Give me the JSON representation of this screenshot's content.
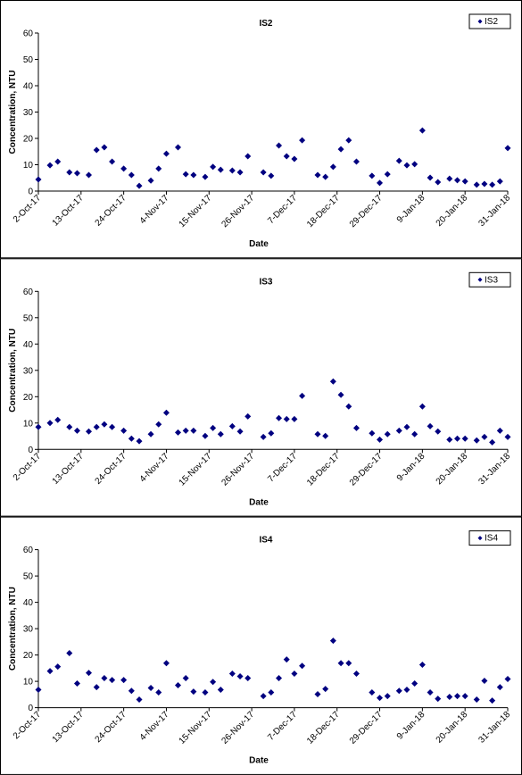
{
  "chart_data": [
    {
      "type": "scatter",
      "title": "IS2",
      "x_label": "Date",
      "y_label": "Concentration, NTU",
      "legend": "upper right",
      "grid": false,
      "x": [
        "2017-10-02",
        "2017-10-05",
        "2017-10-07",
        "2017-10-10",
        "2017-10-12",
        "2017-10-15",
        "2017-10-17",
        "2017-10-19",
        "2017-10-21",
        "2017-10-24",
        "2017-10-26",
        "2017-10-28",
        "2017-10-31",
        "2017-11-02",
        "2017-11-04",
        "2017-11-07",
        "2017-11-09",
        "2017-11-11",
        "2017-11-14",
        "2017-11-16",
        "2017-11-18",
        "2017-11-21",
        "2017-11-23",
        "2017-11-25",
        "2017-11-29",
        "2017-12-01",
        "2017-12-03",
        "2017-12-05",
        "2017-12-07",
        "2017-12-09",
        "2017-12-13",
        "2017-12-15",
        "2017-12-17",
        "2017-12-19",
        "2017-12-21",
        "2017-12-23",
        "2017-12-27",
        "2017-12-29",
        "2017-12-31",
        "2018-01-03",
        "2018-01-05",
        "2018-01-07",
        "2018-01-09",
        "2018-01-11",
        "2018-01-13",
        "2018-01-16",
        "2018-01-18",
        "2018-01-20",
        "2018-01-23",
        "2018-01-25",
        "2018-01-27",
        "2018-01-29",
        "2018-01-31"
      ],
      "series": [
        {
          "name": "IS2",
          "color": "#000080",
          "values": [
            4.4,
            9.8,
            11.2,
            7.1,
            6.8,
            6.1,
            15.6,
            16.6,
            11.2,
            8.5,
            6.1,
            2,
            4,
            8.5,
            14.2,
            16.6,
            6.4,
            6.1,
            5.4,
            9.2,
            8.1,
            7.8,
            7.1,
            13.2,
            7.1,
            5.8,
            17.3,
            13.2,
            12.2,
            19.3,
            6.1,
            5.4,
            9.2,
            15.9,
            19.3,
            11.2,
            5.8,
            3.1,
            6.4,
            11.5,
            9.8,
            10.2,
            23,
            5.1,
            3.4,
            4.7,
            4.1,
            3.7,
            2.4,
            2.7,
            2.4,
            3.7,
            16.3
          ]
        }
      ],
      "xlim": [
        "2017-10-02",
        "2018-01-31"
      ],
      "xticks": [
        {
          "value": "2017-10-02",
          "label": "2-Oct-17"
        },
        {
          "value": "2017-10-13",
          "label": "13-Oct-17"
        },
        {
          "value": "2017-10-24",
          "label": "24-Oct-17"
        },
        {
          "value": "2017-11-04",
          "label": "4-Nov-17"
        },
        {
          "value": "2017-11-15",
          "label": "15-Nov-17"
        },
        {
          "value": "2017-11-26",
          "label": "26-Nov-17"
        },
        {
          "value": "2017-12-07",
          "label": "7-Dec-17"
        },
        {
          "value": "2017-12-18",
          "label": "18-Dec-17"
        },
        {
          "value": "2017-12-29",
          "label": "29-Dec-17"
        },
        {
          "value": "2018-01-09",
          "label": "9-Jan-18"
        },
        {
          "value": "2018-01-20",
          "label": "20-Jan-18"
        },
        {
          "value": "2018-01-31",
          "label": "31-Jan-18"
        }
      ],
      "ylim": [
        0,
        60
      ],
      "yticks": [
        0,
        10,
        20,
        30,
        40,
        50,
        60
      ]
    },
    {
      "type": "scatter",
      "title": "IS3",
      "x_label": "Date",
      "y_label": "Concentration, NTU",
      "legend": "upper right",
      "grid": false,
      "x": [
        "2017-10-02",
        "2017-10-05",
        "2017-10-07",
        "2017-10-10",
        "2017-10-12",
        "2017-10-15",
        "2017-10-17",
        "2017-10-19",
        "2017-10-21",
        "2017-10-24",
        "2017-10-26",
        "2017-10-28",
        "2017-10-31",
        "2017-11-02",
        "2017-11-04",
        "2017-11-07",
        "2017-11-09",
        "2017-11-11",
        "2017-11-14",
        "2017-11-16",
        "2017-11-18",
        "2017-11-21",
        "2017-11-23",
        "2017-11-25",
        "2017-11-29",
        "2017-12-01",
        "2017-12-03",
        "2017-12-05",
        "2017-12-07",
        "2017-12-09",
        "2017-12-13",
        "2017-12-15",
        "2017-12-17",
        "2017-12-19",
        "2017-12-21",
        "2017-12-23",
        "2017-12-27",
        "2017-12-29",
        "2017-12-31",
        "2018-01-03",
        "2018-01-05",
        "2018-01-07",
        "2018-01-09",
        "2018-01-11",
        "2018-01-13",
        "2018-01-16",
        "2018-01-18",
        "2018-01-20",
        "2018-01-23",
        "2018-01-25",
        "2018-01-27",
        "2018-01-29",
        "2018-01-31"
      ],
      "series": [
        {
          "name": "IS3",
          "color": "#000080",
          "values": [
            8.5,
            10,
            11.2,
            8.5,
            7.1,
            6.8,
            8.5,
            9.5,
            8.5,
            7.1,
            4.1,
            3.1,
            5.8,
            9.5,
            13.9,
            6.4,
            7.1,
            7.1,
            5.1,
            8.1,
            5.8,
            8.8,
            6.8,
            12.5,
            4.7,
            6.1,
            11.9,
            11.5,
            11.5,
            20.3,
            5.8,
            5.1,
            25.8,
            20.7,
            16.3,
            8.1,
            6.1,
            3.7,
            5.8,
            7.1,
            8.5,
            5.8,
            16.3,
            8.8,
            6.8,
            3.7,
            4.1,
            4.1,
            3.4,
            4.7,
            2.7,
            7.1,
            4.7
          ]
        }
      ],
      "xlim": [
        "2017-10-02",
        "2018-01-31"
      ],
      "xticks": [
        {
          "value": "2017-10-02",
          "label": "2-Oct-17"
        },
        {
          "value": "2017-10-13",
          "label": "13-Oct-17"
        },
        {
          "value": "2017-10-24",
          "label": "24-Oct-17"
        },
        {
          "value": "2017-11-04",
          "label": "4-Nov-17"
        },
        {
          "value": "2017-11-15",
          "label": "15-Nov-17"
        },
        {
          "value": "2017-11-26",
          "label": "26-Nov-17"
        },
        {
          "value": "2017-12-07",
          "label": "7-Dec-17"
        },
        {
          "value": "2017-12-18",
          "label": "18-Dec-17"
        },
        {
          "value": "2017-12-29",
          "label": "29-Dec-17"
        },
        {
          "value": "2018-01-09",
          "label": "9-Jan-18"
        },
        {
          "value": "2018-01-20",
          "label": "20-Jan-18"
        },
        {
          "value": "2018-01-31",
          "label": "31-Jan-18"
        }
      ],
      "ylim": [
        0,
        60
      ],
      "yticks": [
        0,
        10,
        20,
        30,
        40,
        50,
        60
      ]
    },
    {
      "type": "scatter",
      "title": "IS4",
      "x_label": "Date",
      "y_label": "Concentration, NTU",
      "legend": "upper right",
      "grid": false,
      "x": [
        "2017-10-02",
        "2017-10-05",
        "2017-10-07",
        "2017-10-10",
        "2017-10-12",
        "2017-10-15",
        "2017-10-17",
        "2017-10-19",
        "2017-10-21",
        "2017-10-24",
        "2017-10-26",
        "2017-10-28",
        "2017-10-31",
        "2017-11-02",
        "2017-11-04",
        "2017-11-07",
        "2017-11-09",
        "2017-11-11",
        "2017-11-14",
        "2017-11-16",
        "2017-11-18",
        "2017-11-21",
        "2017-11-23",
        "2017-11-25",
        "2017-11-29",
        "2017-12-01",
        "2017-12-03",
        "2017-12-05",
        "2017-12-07",
        "2017-12-09",
        "2017-12-13",
        "2017-12-15",
        "2017-12-17",
        "2017-12-19",
        "2017-12-21",
        "2017-12-23",
        "2017-12-27",
        "2017-12-29",
        "2017-12-31",
        "2018-01-03",
        "2018-01-05",
        "2018-01-07",
        "2018-01-09",
        "2018-01-11",
        "2018-01-13",
        "2018-01-16",
        "2018-01-18",
        "2018-01-20",
        "2018-01-23",
        "2018-01-25",
        "2018-01-27",
        "2018-01-29",
        "2018-01-31"
      ],
      "series": [
        {
          "name": "IS4",
          "color": "#000080",
          "values": [
            6.8,
            13.9,
            15.6,
            20.7,
            9.2,
            13.2,
            7.8,
            11.2,
            10.5,
            10.5,
            6.4,
            3.1,
            7.5,
            5.8,
            16.9,
            8.5,
            11.2,
            6.1,
            5.8,
            9.8,
            6.8,
            12.9,
            11.9,
            11.2,
            4.4,
            5.8,
            11.2,
            18.3,
            12.9,
            15.9,
            5.1,
            7.1,
            25.4,
            16.9,
            16.9,
            12.9,
            5.8,
            3.7,
            4.4,
            6.4,
            6.8,
            9.2,
            16.3,
            5.8,
            3.4,
            4.1,
            4.4,
            4.4,
            3.1,
            10.2,
            2.7,
            7.8,
            10.9
          ]
        }
      ],
      "xlim": [
        "2017-10-02",
        "2018-01-31"
      ],
      "xticks": [
        {
          "value": "2017-10-02",
          "label": "2-Oct-17"
        },
        {
          "value": "2017-10-13",
          "label": "13-Oct-17"
        },
        {
          "value": "2017-10-24",
          "label": "24-Oct-17"
        },
        {
          "value": "2017-11-04",
          "label": "4-Nov-17"
        },
        {
          "value": "2017-11-15",
          "label": "15-Nov-17"
        },
        {
          "value": "2017-11-26",
          "label": "26-Nov-17"
        },
        {
          "value": "2017-12-07",
          "label": "7-Dec-17"
        },
        {
          "value": "2017-12-18",
          "label": "18-Dec-17"
        },
        {
          "value": "2017-12-29",
          "label": "29-Dec-17"
        },
        {
          "value": "2018-01-09",
          "label": "9-Jan-18"
        },
        {
          "value": "2018-01-20",
          "label": "20-Jan-18"
        },
        {
          "value": "2018-01-31",
          "label": "31-Jan-18"
        }
      ],
      "ylim": [
        0,
        60
      ],
      "yticks": [
        0,
        10,
        20,
        30,
        40,
        50,
        60
      ]
    }
  ]
}
